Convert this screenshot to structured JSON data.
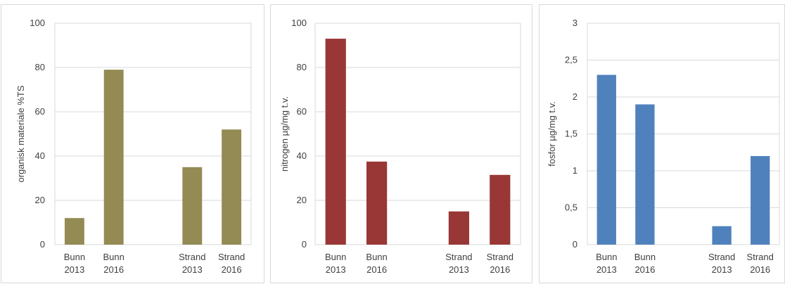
{
  "chart_data": [
    {
      "type": "bar",
      "categories": [
        [
          "Bunn",
          "2013"
        ],
        [
          "Bunn",
          "2016"
        ],
        [
          "",
          ""
        ],
        [
          "Strand",
          "2013"
        ],
        [
          "Strand",
          "2016"
        ]
      ],
      "values": [
        12,
        79,
        null,
        35,
        52
      ],
      "ylabel": "organisk materiale %TS",
      "ylim": [
        0,
        100
      ],
      "yticks": [
        "0",
        "20",
        "40",
        "60",
        "80",
        "100"
      ],
      "grid": true,
      "color": "#948a54"
    },
    {
      "type": "bar",
      "categories": [
        [
          "Bunn",
          "2013"
        ],
        [
          "Bunn",
          "2016"
        ],
        [
          "",
          ""
        ],
        [
          "Strand",
          "2013"
        ],
        [
          "Strand",
          "2016"
        ]
      ],
      "values": [
        93,
        37.5,
        null,
        15,
        31.5
      ],
      "ylabel": "nitrogen µg/mg t.v.",
      "ylim": [
        0,
        100
      ],
      "yticks": [
        "0",
        "20",
        "40",
        "60",
        "80",
        "100"
      ],
      "grid": true,
      "color": "#983735"
    },
    {
      "type": "bar",
      "categories": [
        [
          "Bunn",
          "2013"
        ],
        [
          "Bunn",
          "2016"
        ],
        [
          "",
          ""
        ],
        [
          "Strand",
          "2013"
        ],
        [
          "Strand",
          "2016"
        ]
      ],
      "values": [
        2.3,
        1.9,
        null,
        0.25,
        1.2
      ],
      "ylabel": "fosfor µg/mg t.v.",
      "ylim": [
        0,
        3
      ],
      "yticks": [
        "0",
        "0,5",
        "1",
        "1,5",
        "2",
        "2,5",
        "3"
      ],
      "grid": true,
      "color": "#4f81bd"
    }
  ]
}
